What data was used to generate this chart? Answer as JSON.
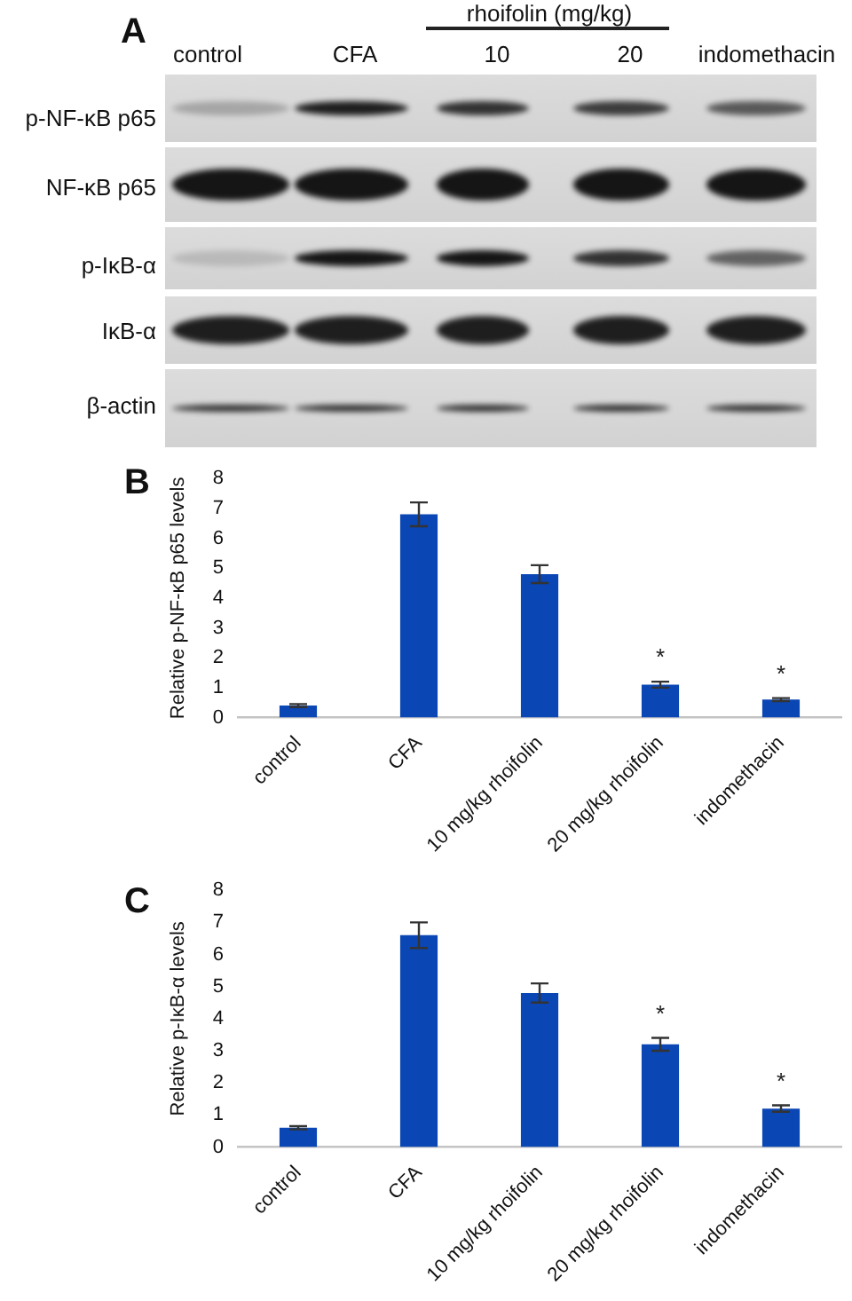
{
  "chart_data": [
    {
      "type": "other",
      "title": "A",
      "categories": [
        "control",
        "CFA",
        "10",
        "20",
        "indomethacin"
      ],
      "y_categories": [
        "p-NF-κB p65",
        "NF-κB p65",
        "p-IκB-α",
        "IκB-α",
        "β-actin"
      ],
      "annotations": [
        "rhoifolin (mg/kg)"
      ]
    },
    {
      "type": "bar",
      "title": "B",
      "ylabel": "Relative p-NF-κB p65 levels",
      "categories": [
        "control",
        "CFA",
        "10 mg/kg rhoifolin",
        "20 mg/kg rhoifolin",
        "indomethacin"
      ],
      "values": [
        0.4,
        6.8,
        4.8,
        1.1,
        0.6
      ],
      "errors": [
        0.05,
        0.4,
        0.3,
        0.1,
        0.05
      ],
      "color": "#0a46b4",
      "ylim": [
        0,
        8
      ],
      "yticks": [
        0,
        1,
        2,
        3,
        4,
        5,
        6,
        7,
        8
      ],
      "annotations": [
        "*",
        "*"
      ]
    },
    {
      "type": "bar",
      "title": "C",
      "ylabel": "Relative p-IκB-α levels",
      "categories": [
        "control",
        "CFA",
        "10 mg/kg rhoifolin",
        "20 mg/kg rhoifolin",
        "indomethacin"
      ],
      "values": [
        0.6,
        6.6,
        4.8,
        3.2,
        1.2
      ],
      "errors": [
        0.05,
        0.4,
        0.3,
        0.2,
        0.1
      ],
      "color": "#0a46b4",
      "ylim": [
        0,
        8
      ],
      "yticks": [
        0,
        1,
        2,
        3,
        4,
        5,
        6,
        7,
        8
      ],
      "annotations": [
        "*",
        "*"
      ]
    }
  ]
}
